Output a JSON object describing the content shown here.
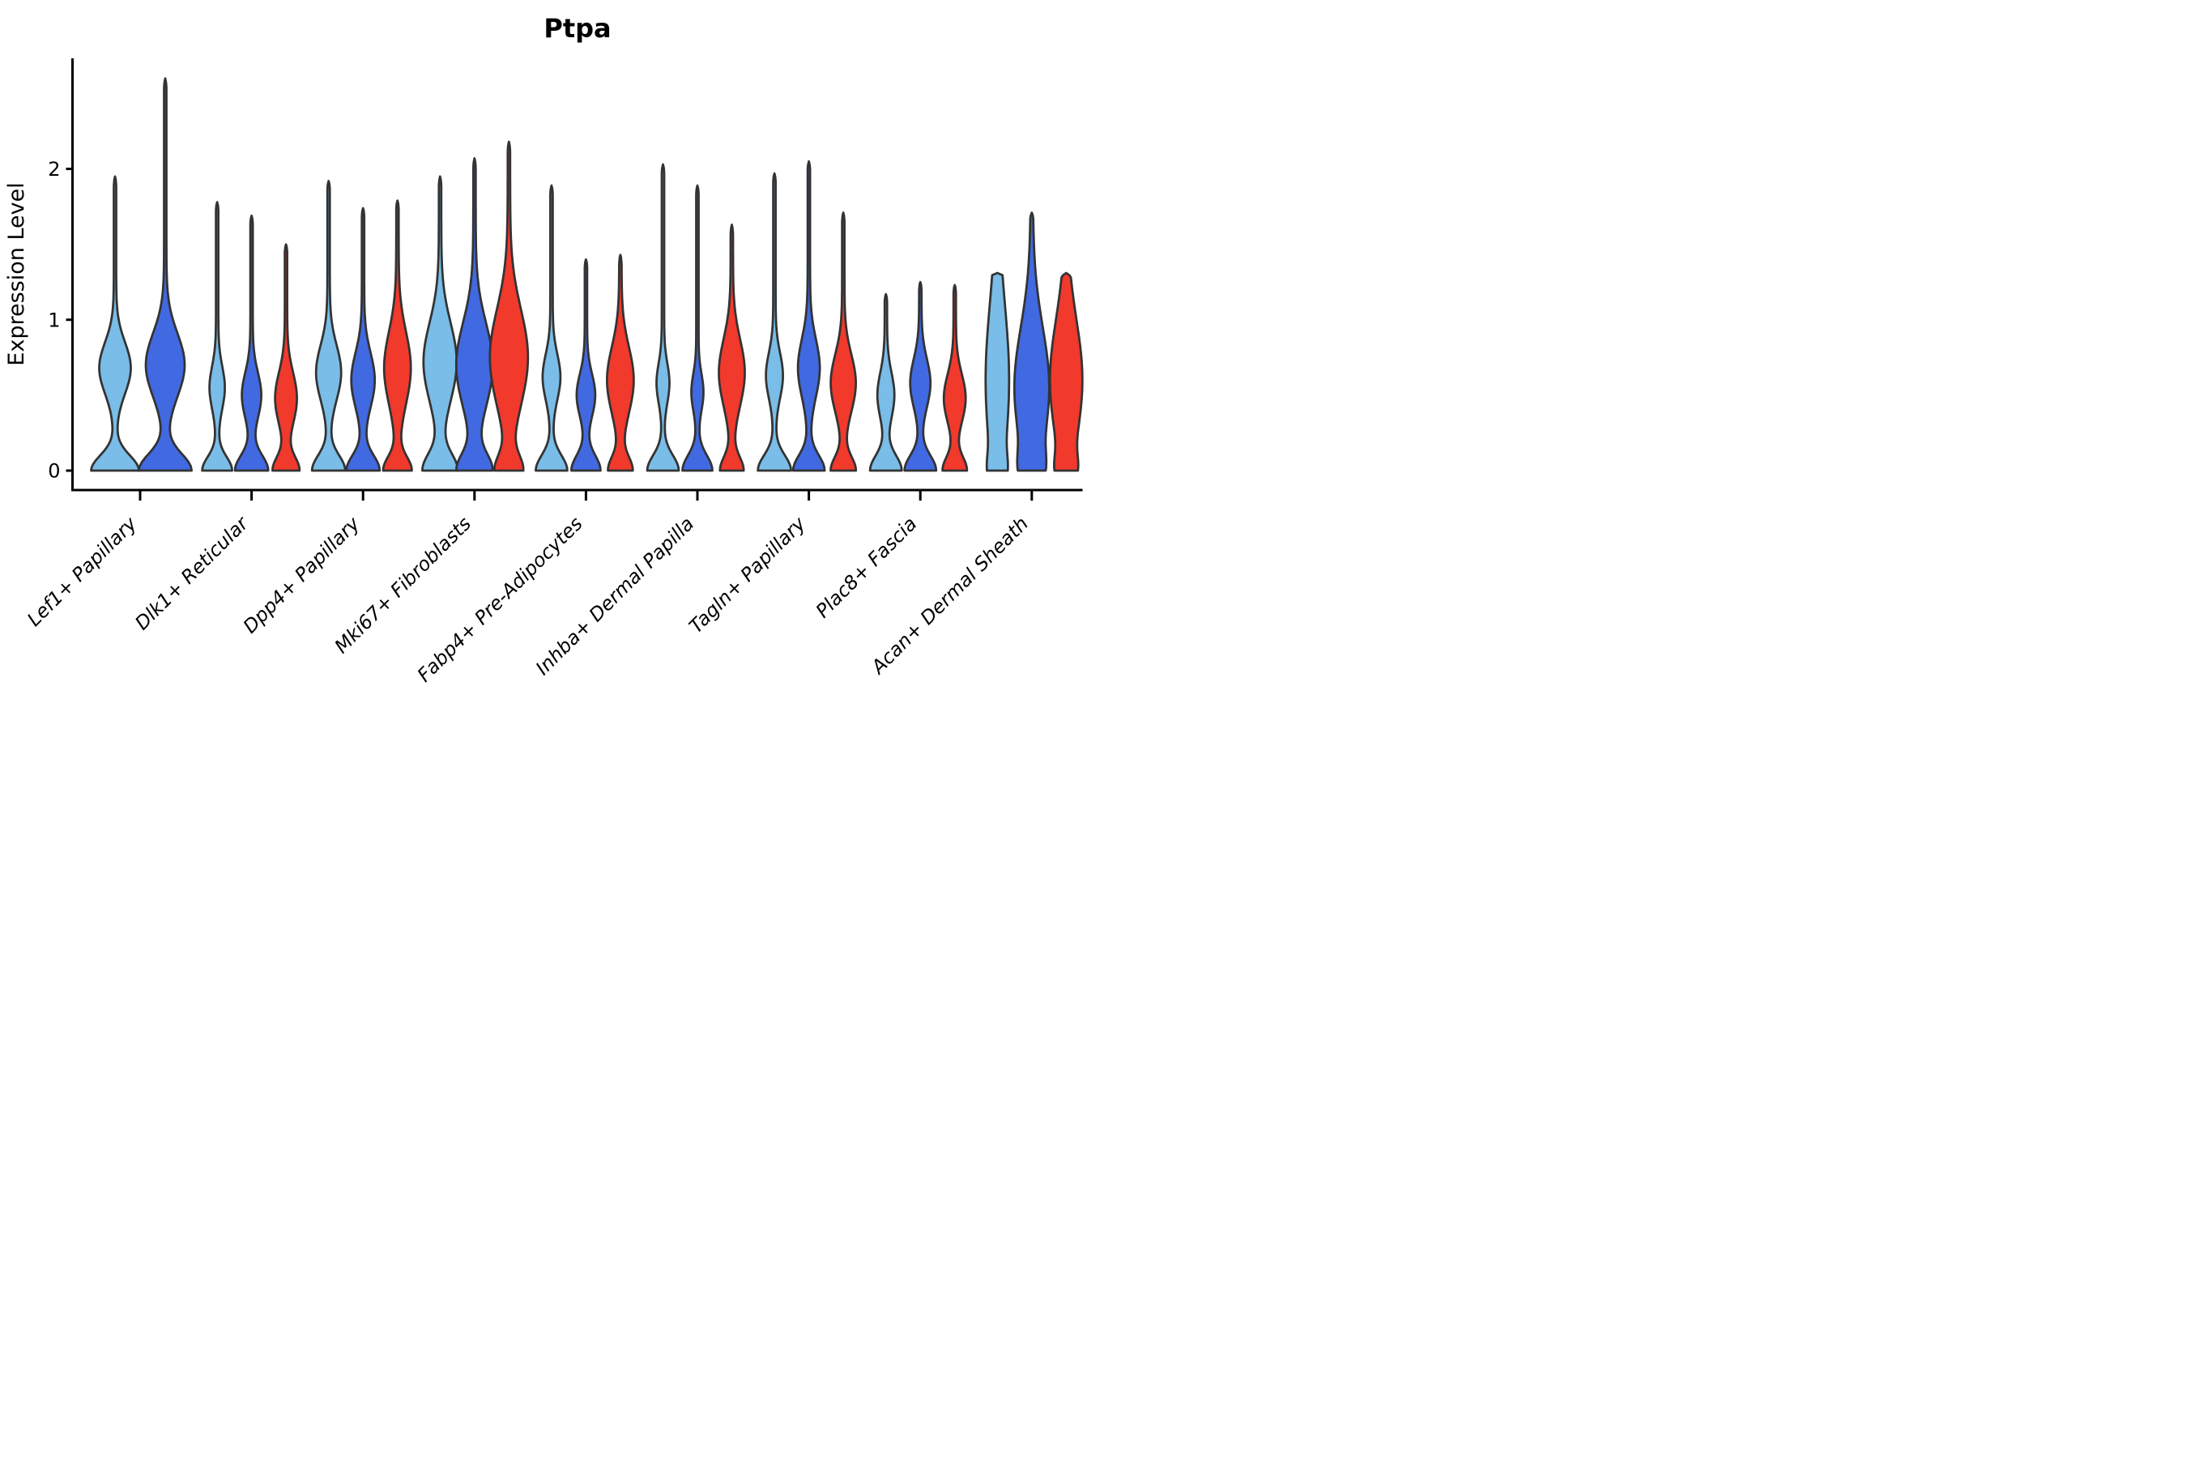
{
  "title": "Ptpa",
  "y_axis": {
    "label": "Expression Level",
    "tick_labels": [
      "0",
      "1",
      "2"
    ]
  },
  "x_axis": {
    "categories": [
      "Lef1+ Papillary",
      "Dlk1+ Reticular",
      "Dpp4+ Papillary",
      "Mki67+ Fibroblasts",
      "Fabp4+ Pre-Adipocytes",
      "Inhba+ Dermal Papilla",
      "Tagln+ Papillary",
      "Plac8+ Fascia",
      "Acan+ Dermal Sheath"
    ]
  },
  "colors": {
    "light_blue": "#79BDE8",
    "dark_blue": "#4169E1",
    "red": "#F1392C",
    "outline": "#333333",
    "text": "#000000"
  },
  "chart_data": {
    "type": "violin",
    "title": "Ptpa",
    "ylabel": "Expression Level",
    "xlabel": "",
    "ylim": [
      -0.13,
      2.73
    ],
    "yticks": [
      0,
      1,
      2
    ],
    "grid": false,
    "legend_position": "none",
    "categories": [
      "Lef1+ Papillary",
      "Dlk1+ Reticular",
      "Dpp4+ Papillary",
      "Mki67+ Fibroblasts",
      "Fabp4+ Pre-Adipocytes",
      "Inhba+ Dermal Papilla",
      "Tagln+ Papillary",
      "Plac8+ Fascia",
      "Acan+ Dermal Sheath"
    ],
    "split_colors": [
      "light_blue",
      "dark_blue",
      "red"
    ],
    "groups": [
      {
        "category": "Lef1+ Papillary",
        "violins": [
          {
            "color": "light_blue",
            "offset": -62,
            "max": 1.95,
            "peak": 0.68,
            "peak_sigma": 0.17,
            "peak_w": 36,
            "base_w": 56,
            "base_sigma": 0.1,
            "floor": 3,
            "cap": 0.06
          },
          {
            "color": "dark_blue",
            "offset": 62,
            "max": 2.6,
            "peak": 0.7,
            "peak_sigma": 0.21,
            "peak_w": 45,
            "base_w": 62,
            "base_sigma": 0.11,
            "floor": 3,
            "cap": 0.06
          }
        ]
      },
      {
        "category": "Dlk1+ Reticular",
        "violins": [
          {
            "color": "light_blue",
            "offset": -85,
            "max": 1.78,
            "peak": 0.55,
            "peak_sigma": 0.14,
            "peak_w": 16,
            "base_w": 34,
            "base_sigma": 0.09,
            "floor": 3,
            "cap": 0.05
          },
          {
            "color": "dark_blue",
            "offset": 0,
            "max": 1.69,
            "peak": 0.5,
            "peak_sigma": 0.15,
            "peak_w": 21,
            "base_w": 38,
            "base_sigma": 0.1,
            "floor": 3,
            "cap": 0.05
          },
          {
            "color": "red",
            "offset": 85,
            "max": 1.5,
            "peak": 0.48,
            "peak_sigma": 0.17,
            "peak_w": 24,
            "base_w": 30,
            "base_sigma": 0.09,
            "floor": 3,
            "cap": 0.05
          }
        ]
      },
      {
        "category": "Dpp4+ Papillary",
        "violins": [
          {
            "color": "light_blue",
            "offset": -85,
            "max": 1.92,
            "peak": 0.65,
            "peak_sigma": 0.18,
            "peak_w": 28,
            "base_w": 38,
            "base_sigma": 0.1,
            "floor": 3,
            "cap": 0.05
          },
          {
            "color": "dark_blue",
            "offset": 0,
            "max": 1.74,
            "peak": 0.6,
            "peak_sigma": 0.18,
            "peak_w": 26,
            "base_w": 38,
            "base_sigma": 0.1,
            "floor": 3,
            "cap": 0.05
          },
          {
            "color": "red",
            "offset": 85,
            "max": 1.79,
            "peak": 0.68,
            "peak_sigma": 0.24,
            "peak_w": 30,
            "base_w": 32,
            "base_sigma": 0.09,
            "floor": 3,
            "cap": 0.05
          }
        ]
      },
      {
        "category": "Mki67+ Fibroblasts",
        "violins": [
          {
            "color": "light_blue",
            "offset": -85,
            "max": 1.95,
            "peak": 0.72,
            "peak_sigma": 0.26,
            "peak_w": 38,
            "base_w": 40,
            "base_sigma": 0.11,
            "floor": 3,
            "cap": 0.06
          },
          {
            "color": "dark_blue",
            "offset": 0,
            "max": 2.07,
            "peak": 0.7,
            "peak_sigma": 0.28,
            "peak_w": 42,
            "base_w": 40,
            "base_sigma": 0.11,
            "floor": 3,
            "cap": 0.06
          },
          {
            "color": "red",
            "offset": 85,
            "max": 2.18,
            "peak": 0.75,
            "peak_sigma": 0.32,
            "peak_w": 44,
            "base_w": 30,
            "base_sigma": 0.1,
            "floor": 3,
            "cap": 0.06
          }
        ]
      },
      {
        "category": "Fabp4+ Pre-Adipocytes",
        "violins": [
          {
            "color": "light_blue",
            "offset": -85,
            "max": 1.89,
            "peak": 0.62,
            "peak_sigma": 0.15,
            "peak_w": 19,
            "base_w": 36,
            "base_sigma": 0.1,
            "floor": 3,
            "cap": 0.05
          },
          {
            "color": "dark_blue",
            "offset": 0,
            "max": 1.4,
            "peak": 0.5,
            "peak_sigma": 0.14,
            "peak_w": 20,
            "base_w": 33,
            "base_sigma": 0.1,
            "floor": 3,
            "cap": 0.05
          },
          {
            "color": "red",
            "offset": 85,
            "max": 1.43,
            "peak": 0.6,
            "peak_sigma": 0.22,
            "peak_w": 30,
            "base_w": 27,
            "base_sigma": 0.09,
            "floor": 3,
            "cap": 0.06
          }
        ]
      },
      {
        "category": "Inhba+ Dermal Papilla",
        "violins": [
          {
            "color": "light_blue",
            "offset": -85,
            "max": 2.03,
            "peak": 0.58,
            "peak_sigma": 0.13,
            "peak_w": 13,
            "base_w": 36,
            "base_sigma": 0.1,
            "floor": 3,
            "cap": 0.05
          },
          {
            "color": "dark_blue",
            "offset": 0,
            "max": 1.89,
            "peak": 0.52,
            "peak_sigma": 0.12,
            "peak_w": 12,
            "base_w": 34,
            "base_sigma": 0.1,
            "floor": 3,
            "cap": 0.05
          },
          {
            "color": "red",
            "offset": 85,
            "max": 1.63,
            "peak": 0.65,
            "peak_sigma": 0.22,
            "peak_w": 29,
            "base_w": 26,
            "base_sigma": 0.09,
            "floor": 3,
            "cap": 0.06
          }
        ]
      },
      {
        "category": "Tagln+ Papillary",
        "violins": [
          {
            "color": "light_blue",
            "offset": -85,
            "max": 1.97,
            "peak": 0.63,
            "peak_sigma": 0.15,
            "peak_w": 18,
            "base_w": 38,
            "base_sigma": 0.1,
            "floor": 3,
            "cap": 0.05
          },
          {
            "color": "dark_blue",
            "offset": 0,
            "max": 2.05,
            "peak": 0.68,
            "peak_sigma": 0.19,
            "peak_w": 24,
            "base_w": 36,
            "base_sigma": 0.1,
            "floor": 3,
            "cap": 0.05
          },
          {
            "color": "red",
            "offset": 85,
            "max": 1.71,
            "peak": 0.58,
            "peak_sigma": 0.19,
            "peak_w": 28,
            "base_w": 28,
            "base_sigma": 0.09,
            "floor": 3,
            "cap": 0.06
          }
        ]
      },
      {
        "category": "Plac8+ Fascia",
        "violins": [
          {
            "color": "light_blue",
            "offset": -85,
            "max": 1.17,
            "peak": 0.5,
            "peak_sigma": 0.15,
            "peak_w": 18,
            "base_w": 36,
            "base_sigma": 0.1,
            "floor": 3,
            "cap": 0.05
          },
          {
            "color": "dark_blue",
            "offset": 0,
            "max": 1.25,
            "peak": 0.58,
            "peak_sigma": 0.16,
            "peak_w": 22,
            "base_w": 36,
            "base_sigma": 0.1,
            "floor": 3,
            "cap": 0.05
          },
          {
            "color": "red",
            "offset": 85,
            "max": 1.23,
            "peak": 0.48,
            "peak_sigma": 0.16,
            "peak_w": 24,
            "base_w": 27,
            "base_sigma": 0.09,
            "floor": 3,
            "cap": 0.05
          }
        ]
      },
      {
        "category": "Acan+ Dermal Sheath",
        "violins": [
          {
            "color": "light_blue",
            "offset": -85,
            "max": 1.31,
            "peak": 0.6,
            "peak_sigma": 0.5,
            "peak_w": 26,
            "base_w": 10,
            "base_sigma": 0.1,
            "floor": 3,
            "cap": 0.015
          },
          {
            "color": "dark_blue",
            "offset": 0,
            "max": 1.71,
            "peak": 0.55,
            "peak_sigma": 0.4,
            "peak_w": 40,
            "base_w": 16,
            "base_sigma": 0.12,
            "floor": 3,
            "cap": 0.04
          },
          {
            "color": "red",
            "offset": 85,
            "max": 1.31,
            "peak": 0.6,
            "peak_sigma": 0.4,
            "peak_w": 37,
            "base_w": 14,
            "base_sigma": 0.1,
            "floor": 3,
            "cap": 0.03
          }
        ]
      }
    ]
  }
}
